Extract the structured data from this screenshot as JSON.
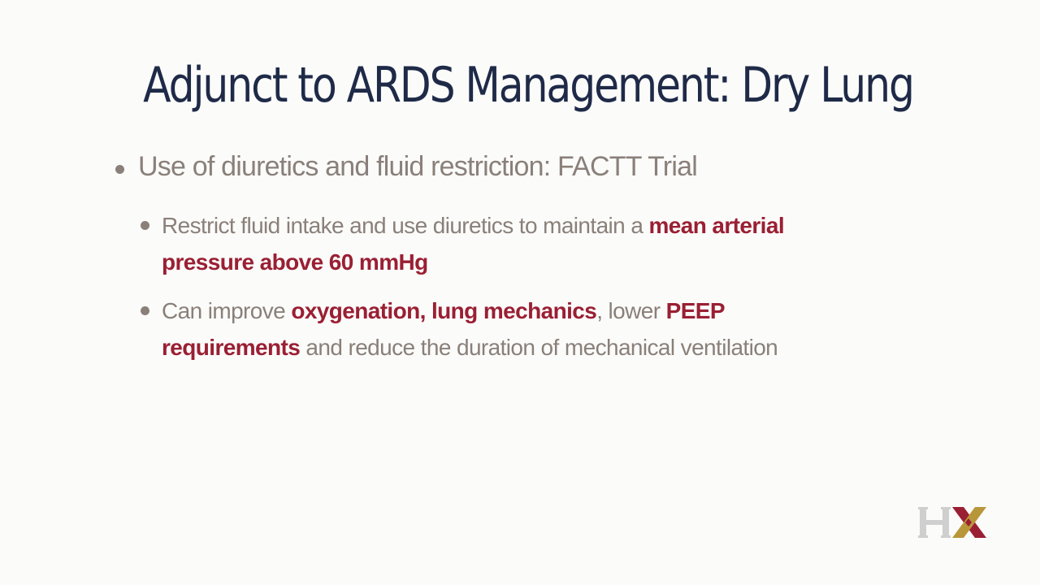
{
  "slide": {
    "title": "Adjunct to ARDS Management: Dry Lung",
    "bullet1": "Use of diuretics and fluid restriction: FACTT Trial",
    "sub1": {
      "part1": "Restrict fluid intake and use diuretics to maintain a ",
      "highlight1": "mean arterial pressure above 60 mmHg"
    },
    "sub2": {
      "part1": "Can improve ",
      "highlight1": "oxygenation, lung mechanics",
      "part2": ", lower ",
      "highlight2": "PEEP requirements",
      "part3": " and reduce the duration of mechanical ventilation"
    },
    "logo": {
      "text": "HX",
      "colors": {
        "h": "#cfcfcf",
        "x_gold": "#b8973a",
        "x_red": "#9a1f33"
      }
    }
  }
}
